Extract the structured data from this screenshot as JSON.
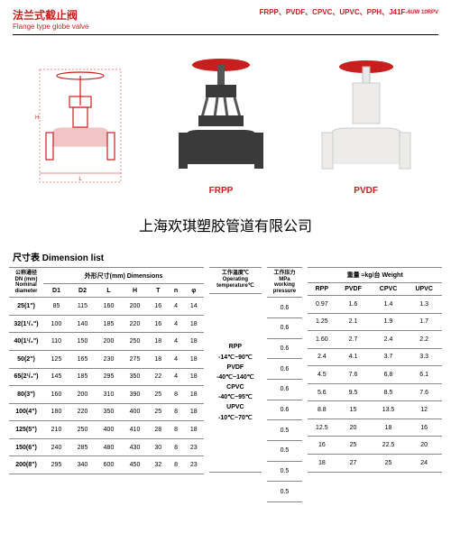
{
  "header": {
    "title_zh": "法兰式截止阀",
    "title_en": "Flange type globe valve",
    "materials": "FRPP、PVDF、CPVC、UPVC、PPH、J41F-",
    "materials_suffix": "6UW\n10RPV",
    "title_color": "#c60010"
  },
  "images": {
    "label1": "FRPP",
    "label2": "PVDF",
    "label_color": "#c81e1e"
  },
  "company": "上海欢琪塑胶管道有限公司",
  "dimTitle": "尺寸表 Dimension list",
  "table1": {
    "h_dn": "公称通径\nDN\n(mm)\nNominal\ndiameter",
    "h_dims": "外形尺寸(mm) Dimensions",
    "cols": [
      "D1",
      "D2",
      "L",
      "H",
      "T",
      "n",
      "φ"
    ],
    "rows": [
      [
        "25(1\")",
        "85",
        "115",
        "160",
        "200",
        "16",
        "4",
        "14"
      ],
      [
        "32(1¹/₄\")",
        "100",
        "140",
        "185",
        "220",
        "16",
        "4",
        "18"
      ],
      [
        "40(1¹/₂\")",
        "110",
        "150",
        "200",
        "250",
        "18",
        "4",
        "18"
      ],
      [
        "50(2\")",
        "125",
        "165",
        "230",
        "275",
        "18",
        "4",
        "18"
      ],
      [
        "65(2¹/₂\")",
        "145",
        "185",
        "295",
        "350",
        "22",
        "4",
        "18"
      ],
      [
        "80(3\")",
        "160",
        "200",
        "310",
        "390",
        "25",
        "8",
        "18"
      ],
      [
        "100(4\")",
        "180",
        "220",
        "350",
        "400",
        "25",
        "8",
        "18"
      ],
      [
        "125(5\")",
        "210",
        "250",
        "400",
        "410",
        "28",
        "8",
        "18"
      ],
      [
        "150(6\")",
        "240",
        "285",
        "480",
        "430",
        "30",
        "8",
        "23"
      ],
      [
        "200(8\")",
        "295",
        "340",
        "600",
        "450",
        "32",
        "8",
        "23"
      ]
    ]
  },
  "table2": {
    "h": "工作温度℃\nOperating\ntemperature℃",
    "body": "RPP\n-14℃~90℃\nPVDF\n-40℃~140℃\nCPVC\n-40℃~95℃\nUPVC\n-10℃~70℃"
  },
  "table3": {
    "h": "工作压力\nMPa\nworking\npressure",
    "rows": [
      "0.6",
      "0.6",
      "0.6",
      "0.6",
      "0.6",
      "0.6",
      "0.5",
      "0.5",
      "0.5",
      "0.5"
    ]
  },
  "table4": {
    "h": "重量 ≈kg/台 Weight",
    "cols": [
      "RPP",
      "PVDF",
      "CPVC",
      "UPVC"
    ],
    "rows": [
      [
        "0.97",
        "1.6",
        "1.4",
        "1.3"
      ],
      [
        "1.25",
        "2.1",
        "1.9",
        "1.7"
      ],
      [
        "1.60",
        "2.7",
        "2.4",
        "2.2"
      ],
      [
        "2.4",
        "4.1",
        "3.7",
        "3.3"
      ],
      [
        "4.5",
        "7.6",
        "6.8",
        "6.1"
      ],
      [
        "5.6",
        "9.5",
        "8.5",
        "7.6"
      ],
      [
        "8.8",
        "15",
        "13.5",
        "12"
      ],
      [
        "12.5",
        "20",
        "18",
        "16"
      ],
      [
        "16",
        "25",
        "22.5",
        "20"
      ],
      [
        "18",
        "27",
        "25",
        "24"
      ]
    ]
  }
}
